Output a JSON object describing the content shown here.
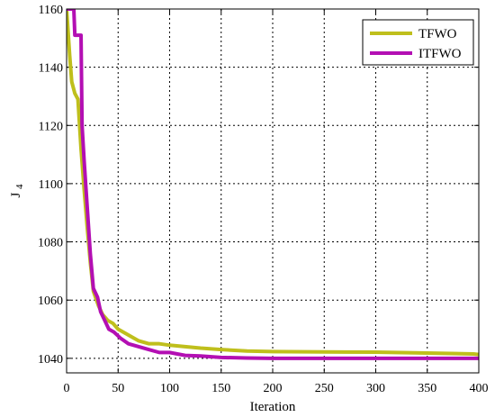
{
  "chart_data": {
    "type": "line",
    "xlabel": "Iteration",
    "ylabel_main": "J",
    "ylabel_sub": "4",
    "xlim": [
      0,
      400
    ],
    "ylim": [
      1035,
      1160
    ],
    "xticks": [
      0,
      50,
      100,
      150,
      200,
      250,
      300,
      350,
      400
    ],
    "yticks": [
      1040,
      1060,
      1080,
      1100,
      1120,
      1140,
      1160
    ],
    "grid": true,
    "legend_position": "top-right",
    "series": [
      {
        "name": "TFWO",
        "color": "#bfbf1c",
        "x": [
          0,
          3,
          5,
          8,
          11,
          14,
          17,
          20,
          23,
          26,
          28,
          31,
          35,
          40,
          45,
          50,
          60,
          70,
          80,
          90,
          100,
          115,
          130,
          150,
          175,
          200,
          250,
          300,
          350,
          395,
          400
        ],
        "y": [
          1160,
          1144,
          1135,
          1131,
          1129,
          1112,
          1098,
          1085,
          1073,
          1063,
          1061,
          1058,
          1055,
          1053,
          1052,
          1050,
          1048,
          1046,
          1045,
          1045,
          1044.5,
          1044,
          1043.5,
          1043,
          1042.5,
          1042.3,
          1042.2,
          1042.1,
          1041.8,
          1041.5,
          1041.3
        ]
      },
      {
        "name": "ITFWO",
        "color": "#b30fb3",
        "x": [
          0,
          4,
          7,
          8,
          10,
          14,
          15,
          17,
          20,
          23,
          26,
          30,
          33,
          37,
          41,
          46,
          52,
          60,
          70,
          80,
          90,
          100,
          115,
          130,
          150,
          175,
          200,
          250,
          300,
          350,
          400
        ],
        "y": [
          1160,
          1160,
          1160,
          1151,
          1151,
          1151,
          1120,
          1108,
          1092,
          1076,
          1064,
          1061,
          1056,
          1053,
          1050,
          1049,
          1047,
          1045,
          1044,
          1043,
          1042,
          1042,
          1041,
          1040.8,
          1040.3,
          1040.1,
          1040,
          1040,
          1040,
          1040,
          1040
        ]
      }
    ]
  }
}
